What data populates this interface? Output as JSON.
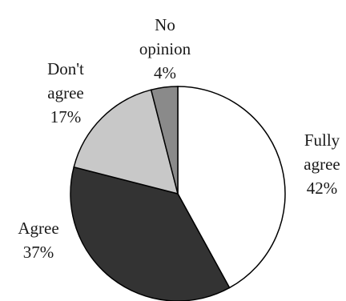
{
  "chart_data": {
    "type": "pie",
    "title": "",
    "slices": [
      {
        "label_lines": [
          "Fully",
          "agree"
        ],
        "pct_label": "42%",
        "value": 42,
        "color": "#ffffff"
      },
      {
        "label_lines": [
          "Agree"
        ],
        "pct_label": "37%",
        "value": 37,
        "color": "#333333"
      },
      {
        "label_lines": [
          "Don't",
          "agree"
        ],
        "pct_label": "17%",
        "value": 17,
        "color": "#c8c8c8"
      },
      {
        "label_lines": [
          "No",
          "opinion"
        ],
        "pct_label": "4%",
        "value": 4,
        "color": "#8a8a8a"
      }
    ],
    "start": "12 o'clock",
    "direction": "clockwise",
    "stroke_color": "#000000"
  }
}
